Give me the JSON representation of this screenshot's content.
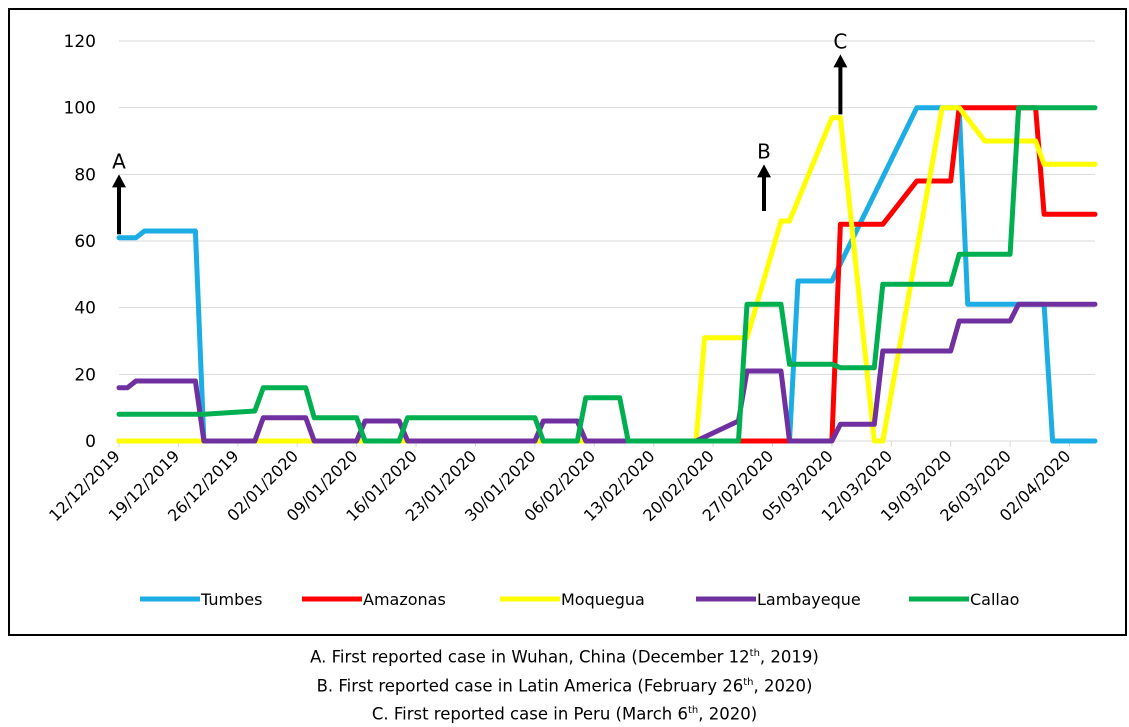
{
  "chart_data": {
    "type": "line",
    "title": "",
    "xlabel": "",
    "ylabel": "",
    "ylim": [
      0,
      120
    ],
    "y_ticks": [
      "0",
      "20",
      "40",
      "60",
      "80",
      "100",
      "120"
    ],
    "grid": "horizontal",
    "legend_placement": "bottom",
    "x_tick_labels": [
      "12/12/2019",
      "19/12/2019",
      "26/12/2019",
      "02/01/2020",
      "09/01/2020",
      "16/01/2020",
      "23/01/2020",
      "30/01/2020",
      "06/02/2020",
      "13/02/2020",
      "20/02/2020",
      "27/02/2020",
      "05/03/2020",
      "12/03/2020",
      "19/03/2020",
      "26/03/2020",
      "02/04/2020"
    ],
    "x_start": "2019-12-12",
    "x_end": "2020-04-05",
    "series": [
      {
        "name": "Tumbes",
        "color": "#1CADE4",
        "x": [
          "2019-12-12",
          "2019-12-13",
          "2019-12-14",
          "2019-12-15",
          "2019-12-18",
          "2019-12-21",
          "2019-12-22",
          "2020-02-29",
          "2020-03-01",
          "2020-03-04",
          "2020-03-05",
          "2020-03-15",
          "2020-03-20",
          "2020-03-21",
          "2020-03-26",
          "2020-03-30",
          "2020-03-31",
          "2020-04-05"
        ],
        "values": [
          61,
          61,
          61,
          63,
          63,
          63,
          0,
          0,
          48,
          48,
          48,
          100,
          100,
          41,
          41,
          41,
          0,
          0
        ]
      },
      {
        "name": "Amazonas",
        "color": "#FF0000",
        "x": [
          "2019-12-12",
          "2020-03-05",
          "2020-03-06",
          "2020-03-10",
          "2020-03-11",
          "2020-03-15",
          "2020-03-19",
          "2020-03-20",
          "2020-03-23",
          "2020-03-27",
          "2020-03-29",
          "2020-03-30",
          "2020-04-05"
        ],
        "values": [
          0,
          0,
          65,
          65,
          65,
          78,
          78,
          100,
          100,
          100,
          100,
          68,
          68
        ]
      },
      {
        "name": "Moquegua",
        "color": "#FFFF00",
        "x": [
          "2019-12-12",
          "2020-02-18",
          "2020-02-19",
          "2020-02-23",
          "2020-02-24",
          "2020-02-28",
          "2020-02-29",
          "2020-03-05",
          "2020-03-06",
          "2020-03-10",
          "2020-03-11",
          "2020-03-18",
          "2020-03-20",
          "2020-03-23",
          "2020-03-27",
          "2020-03-29",
          "2020-03-30",
          "2020-04-05"
        ],
        "values": [
          0,
          0,
          31,
          31,
          31,
          66,
          66,
          97,
          97,
          0,
          0,
          100,
          100,
          90,
          90,
          90,
          83,
          83
        ]
      },
      {
        "name": "Lambayeque",
        "color": "#7030A0",
        "x": [
          "2019-12-12",
          "2019-12-13",
          "2019-12-14",
          "2019-12-21",
          "2019-12-22",
          "2019-12-28",
          "2019-12-29",
          "2020-01-03",
          "2020-01-04",
          "2020-01-09",
          "2020-01-10",
          "2020-01-14",
          "2020-01-15",
          "2020-01-30",
          "2020-01-31",
          "2020-02-04",
          "2020-02-05",
          "2020-02-18",
          "2020-02-23",
          "2020-02-24",
          "2020-02-28",
          "2020-02-29",
          "2020-03-05",
          "2020-03-06",
          "2020-03-10",
          "2020-03-11",
          "2020-03-15",
          "2020-03-19",
          "2020-03-20",
          "2020-03-26",
          "2020-03-27",
          "2020-04-05"
        ],
        "values": [
          16,
          16,
          18,
          18,
          0,
          0,
          7,
          7,
          0,
          0,
          6,
          6,
          0,
          0,
          6,
          6,
          0,
          0,
          6,
          21,
          21,
          0,
          0,
          5,
          5,
          27,
          27,
          27,
          36,
          36,
          41,
          41
        ]
      },
      {
        "name": "Callao",
        "color": "#00B050",
        "x": [
          "2019-12-12",
          "2019-12-22",
          "2019-12-28",
          "2019-12-29",
          "2020-01-03",
          "2020-01-04",
          "2020-01-09",
          "2020-01-10",
          "2020-01-14",
          "2020-01-15",
          "2020-01-30",
          "2020-01-31",
          "2020-02-04",
          "2020-02-05",
          "2020-02-09",
          "2020-02-10",
          "2020-02-18",
          "2020-02-23",
          "2020-02-24",
          "2020-02-28",
          "2020-02-29",
          "2020-03-05",
          "2020-03-06",
          "2020-03-10",
          "2020-03-11",
          "2020-03-15",
          "2020-03-19",
          "2020-03-20",
          "2020-03-26",
          "2020-03-27",
          "2020-04-05"
        ],
        "values": [
          8,
          8,
          9,
          16,
          16,
          7,
          7,
          0,
          0,
          7,
          7,
          0,
          0,
          13,
          13,
          0,
          0,
          0,
          41,
          41,
          23,
          23,
          22,
          22,
          47,
          47,
          47,
          56,
          56,
          100,
          100
        ]
      }
    ],
    "annotations": [
      {
        "label": "A",
        "x": "2019-12-12",
        "y_base": 62,
        "y_tip": 80
      },
      {
        "label": "B",
        "x": "2020-02-26",
        "y_base": 69,
        "y_tip": 83
      },
      {
        "label": "C",
        "x": "2020-03-06",
        "y_base": 98,
        "y_tip": 116
      }
    ]
  },
  "captions": [
    {
      "before": "A. First reported case in Wuhan, China (December 12",
      "sup": "th",
      "after": ", 2019)"
    },
    {
      "before": "B. First reported case in Latin America (February 26",
      "sup": "th",
      "after": ", 2020)"
    },
    {
      "before": "C. First reported case in Peru (March 6",
      "sup": "th",
      "after": ", 2020)"
    }
  ]
}
